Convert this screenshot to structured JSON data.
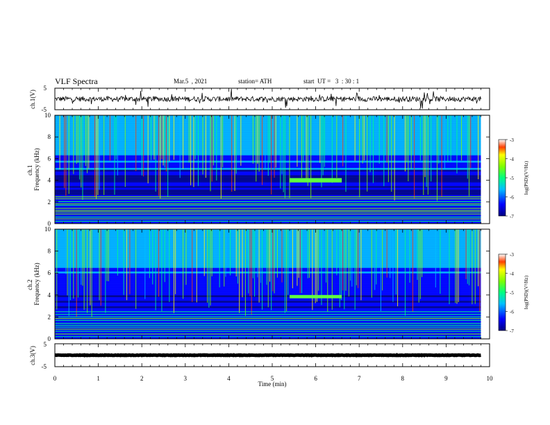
{
  "header": {
    "title": "VLF Spectra",
    "date": "Mar.5  , 2021",
    "station": "station= ATH",
    "start": "start  UT =   3  : 30 : 1"
  },
  "chart_data": [
    {
      "type": "line",
      "name": "ch1-waveform",
      "ylabel": "ch.1(V)",
      "ylim": [
        -5,
        5
      ],
      "yticks": [
        "5",
        "-5"
      ],
      "xlim": [
        0,
        10
      ],
      "baseline": 0,
      "noise_amplitude": 1.2,
      "data_end_x": 9.8
    },
    {
      "type": "heatmap",
      "name": "ch1-spectrogram",
      "ylabel": "ch.1\nFrequency  (kHz)",
      "xlim": [
        0,
        10
      ],
      "ylim": [
        0,
        10
      ],
      "yticks": [
        "0",
        "2",
        "4",
        "6",
        "8",
        "10"
      ],
      "data_end_x": 9.8,
      "tone_band": {
        "x": [
          5.4,
          6.6
        ],
        "y": [
          3.8,
          4.2
        ]
      },
      "colorbar": {
        "label": "log(PSD)(V²/Hz)",
        "range": [
          -7,
          -3
        ],
        "ticks": [
          "-3",
          "-4",
          "-5",
          "-6",
          "-7"
        ]
      }
    },
    {
      "type": "heatmap",
      "name": "ch2-spectrogram",
      "ylabel": "ch.2\nFrequency  (kHz)",
      "xlim": [
        0,
        10
      ],
      "ylim": [
        0,
        10
      ],
      "yticks": [
        "0",
        "2",
        "4",
        "6",
        "8",
        "10"
      ],
      "data_end_x": 9.8,
      "tone_band": {
        "x": [
          5.4,
          6.6
        ],
        "y": [
          3.7,
          4.0
        ]
      },
      "colorbar": {
        "label": "log(PSD)(V²/Hz)",
        "range": [
          -7,
          -3
        ],
        "ticks": [
          "-3",
          "-4",
          "-5",
          "-6",
          "-7"
        ]
      }
    },
    {
      "type": "line",
      "name": "ch3-waveform",
      "ylabel": "ch.3(V)",
      "ylim": [
        -5,
        5
      ],
      "yticks": [
        "5",
        "-5"
      ],
      "xlim": [
        0,
        10
      ],
      "baseline": 0,
      "noise_amplitude": 0.1,
      "data_end_x": 9.8
    }
  ],
  "xaxis": {
    "label": "Time  (min)",
    "ticks": [
      "0",
      "1",
      "2",
      "3",
      "4",
      "5",
      "6",
      "7",
      "8",
      "9",
      "10"
    ]
  }
}
